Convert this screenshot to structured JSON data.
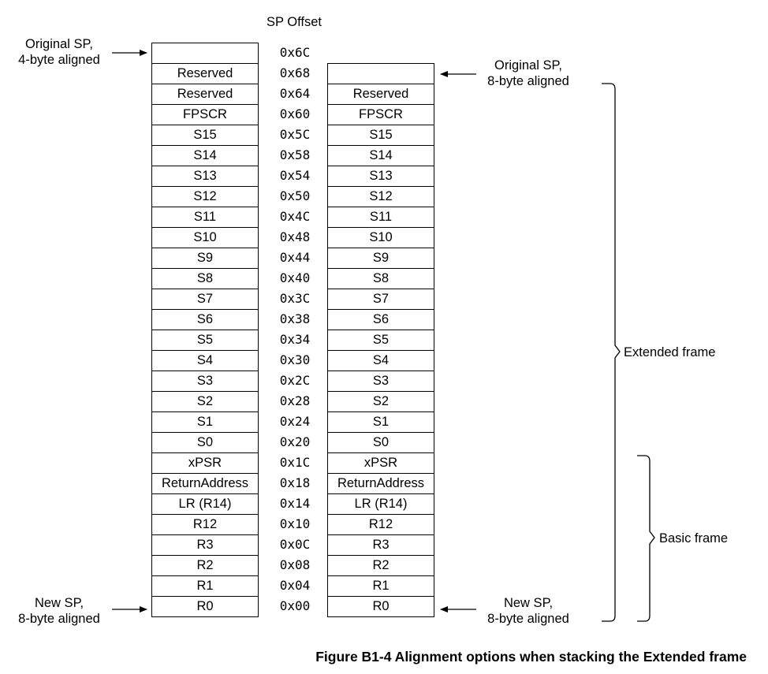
{
  "header": {
    "offset_title": "SP Offset"
  },
  "left_column": [
    "",
    "Reserved",
    "Reserved",
    "FPSCR",
    "S15",
    "S14",
    "S13",
    "S12",
    "S11",
    "S10",
    "S9",
    "S8",
    "S7",
    "S6",
    "S5",
    "S4",
    "S3",
    "S2",
    "S1",
    "S0",
    "xPSR",
    "ReturnAddress",
    "LR (R14)",
    "R12",
    "R3",
    "R2",
    "R1",
    "R0"
  ],
  "right_column": [
    "",
    "Reserved",
    "FPSCR",
    "S15",
    "S14",
    "S13",
    "S12",
    "S11",
    "S10",
    "S9",
    "S8",
    "S7",
    "S6",
    "S5",
    "S4",
    "S3",
    "S2",
    "S1",
    "S0",
    "xPSR",
    "ReturnAddress",
    "LR (R14)",
    "R12",
    "R3",
    "R2",
    "R1",
    "R0"
  ],
  "offsets": [
    "0x6C",
    "0x68",
    "0x64",
    "0x60",
    "0x5C",
    "0x58",
    "0x54",
    "0x50",
    "0x4C",
    "0x48",
    "0x44",
    "0x40",
    "0x3C",
    "0x38",
    "0x34",
    "0x30",
    "0x2C",
    "0x28",
    "0x24",
    "0x20",
    "0x1C",
    "0x18",
    "0x14",
    "0x10",
    "0x0C",
    "0x08",
    "0x04",
    "0x00"
  ],
  "labels": {
    "orig_sp_4": {
      "line1": "Original SP,",
      "line2": "4-byte aligned"
    },
    "orig_sp_8": {
      "line1": "Original SP,",
      "line2": "8-byte aligned"
    },
    "new_sp_left": {
      "line1": "New SP,",
      "line2": "8-byte aligned"
    },
    "new_sp_right": {
      "line1": "New SP,",
      "line2": "8-byte aligned"
    }
  },
  "brackets": {
    "extended": "Extended frame",
    "basic": "Basic frame"
  },
  "caption": "Figure B1-4 Alignment options when stacking the Extended frame"
}
